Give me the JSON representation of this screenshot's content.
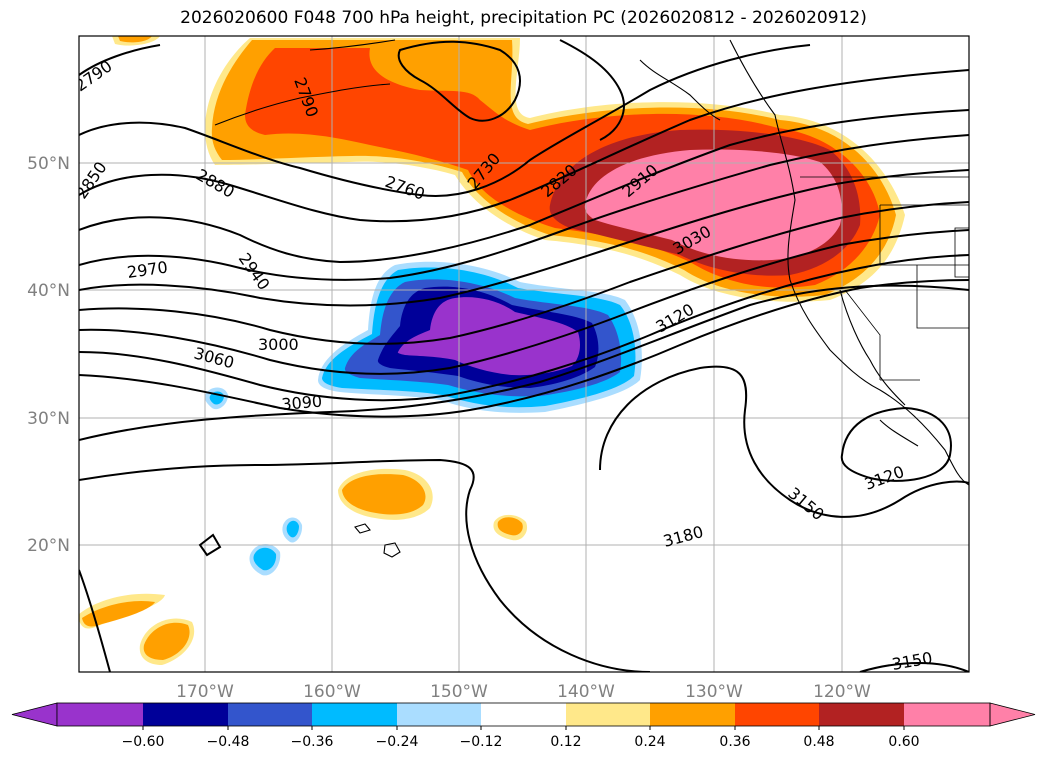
{
  "title": "2026020600 F048 700 hPa height, precipitation PC (2026020812 - 2026020912)",
  "lat_labels": [
    "50°N",
    "40°N",
    "30°N",
    "20°N"
  ],
  "lon_labels": [
    "170°W",
    "160°W",
    "150°W",
    "140°W",
    "130°W",
    "120°W"
  ],
  "colorbar": {
    "ticks": [
      "−0.60",
      "−0.48",
      "−0.36",
      "−0.24",
      "−0.12",
      "0.12",
      "0.24",
      "0.36",
      "0.48",
      "0.60"
    ],
    "colors": [
      "#9933cc",
      "#000099",
      "#3355cc",
      "#00bbff",
      "#aaddff",
      "#ffffff",
      "#ffe88a",
      "#ffa000",
      "#ff4500",
      "#b22222",
      "#ff80a8"
    ]
  },
  "contour_labels": [
    "2790",
    "2850",
    "2880",
    "2970",
    "2940",
    "3000",
    "3060",
    "3090",
    "2790",
    "2760",
    "2730",
    "2820",
    "2910",
    "3030",
    "3120",
    "3150",
    "3120",
    "3180",
    "3150"
  ],
  "precip_colors": {
    "light_yellow": "#ffe88a",
    "orange": "#ffa000",
    "red_orange": "#ff4500",
    "dark_red": "#b22222",
    "pink": "#ff80a8",
    "purple": "#9933cc",
    "navy": "#000099",
    "blue": "#3355cc",
    "cyan": "#00bbff",
    "light_blue": "#aaddff"
  }
}
